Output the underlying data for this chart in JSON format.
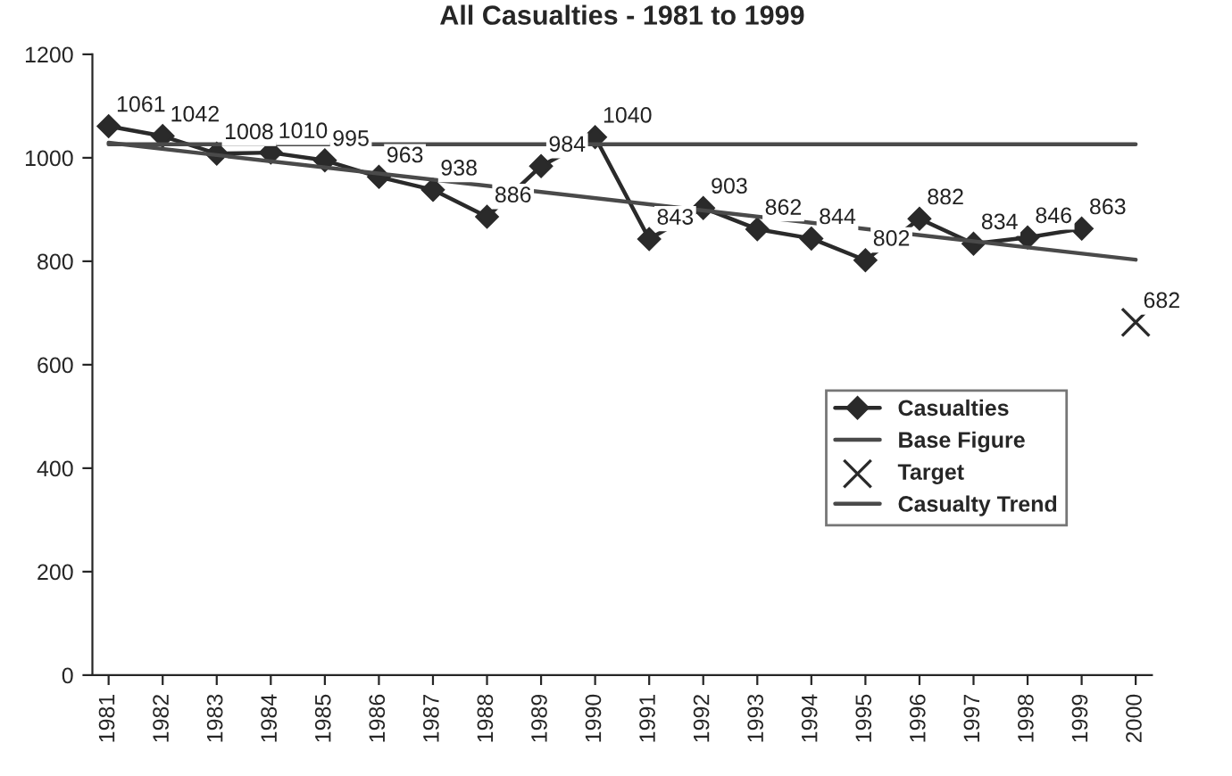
{
  "chart_data": {
    "type": "line",
    "title": "All Casualties - 1981 to 1999",
    "xlim": [
      1980.7,
      2000.3
    ],
    "xticks": [
      1981,
      1982,
      1983,
      1984,
      1985,
      1986,
      1987,
      1988,
      1989,
      1990,
      1991,
      1992,
      1993,
      1994,
      1995,
      1996,
      1997,
      1998,
      1999,
      2000
    ],
    "series": [
      {
        "name": "Casualties",
        "type": "line",
        "color": "#2a2a2a",
        "marker": "diamond",
        "x": [
          1981,
          1982,
          1983,
          1984,
          1985,
          1986,
          1987,
          1988,
          1989,
          1990,
          1991,
          1992,
          1993,
          1994,
          1995,
          1996,
          1997,
          1998,
          1999
        ],
        "values": [
          1061,
          1042,
          1008,
          1010,
          995,
          963,
          938,
          886,
          984,
          1040,
          843,
          903,
          862,
          844,
          802,
          882,
          834,
          846,
          863
        ],
        "value_labels": [
          "1061",
          "1042",
          "1008",
          "1010",
          "995",
          "963",
          "938",
          "886",
          "984",
          "1040",
          "843",
          "903",
          "862",
          "844",
          "802",
          "882",
          "834",
          "846",
          "863"
        ]
      },
      {
        "name": "Base Figure",
        "type": "line",
        "color": "#4a4a4a",
        "marker": "none",
        "x": [
          1981,
          2000
        ],
        "values": [
          1026,
          1026
        ]
      },
      {
        "name": "Target",
        "type": "scatter",
        "color": "#2a2a2a",
        "marker": "cross",
        "x": [
          2000
        ],
        "values": [
          682
        ],
        "value_labels": [
          "682"
        ]
      },
      {
        "name": "Casualty Trend",
        "type": "line",
        "color": "#4a4a4a",
        "marker": "none",
        "x": [
          1981,
          2000
        ],
        "values": [
          1029,
          803
        ]
      }
    ],
    "ylim": [
      0,
      1200
    ],
    "yticks": [
      0,
      200,
      400,
      600,
      800,
      1000,
      1200
    ],
    "grid": false,
    "legend": "center right"
  }
}
